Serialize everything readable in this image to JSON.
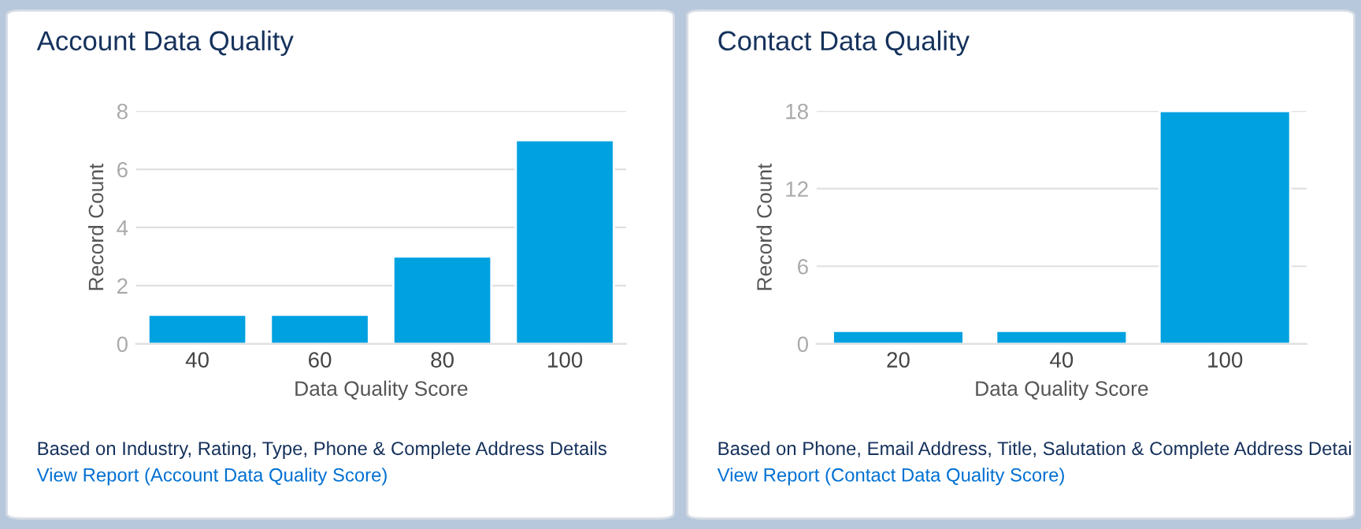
{
  "chart_data": [
    {
      "type": "bar",
      "title": "Account Data Quality",
      "xlabel": "Data Quality Score",
      "ylabel": "Record Count",
      "categories": [
        "40",
        "60",
        "80",
        "100"
      ],
      "values": [
        1,
        1,
        3,
        7
      ],
      "color": "#00a1e0",
      "ylim": [
        0,
        8
      ],
      "yticks": [
        0,
        2,
        4,
        6,
        8
      ],
      "grid": "y",
      "annotations": [
        "Based on Industry, Rating, Type, Phone & Complete Address Details",
        "View Report (Account Data Quality Score)"
      ]
    },
    {
      "type": "bar",
      "title": "Contact Data Quality",
      "xlabel": "Data Quality Score",
      "ylabel": "Record Count",
      "categories": [
        "20",
        "40",
        "100"
      ],
      "values": [
        1,
        1,
        18
      ],
      "color": "#00a1e0",
      "ylim": [
        0,
        18
      ],
      "yticks": [
        0,
        6,
        12,
        18
      ],
      "grid": "y",
      "annotations": [
        "Based on Phone, Email Address, Title, Salutation & Complete Address Detai",
        "View Report (Contact Data Quality Score)"
      ]
    }
  ]
}
